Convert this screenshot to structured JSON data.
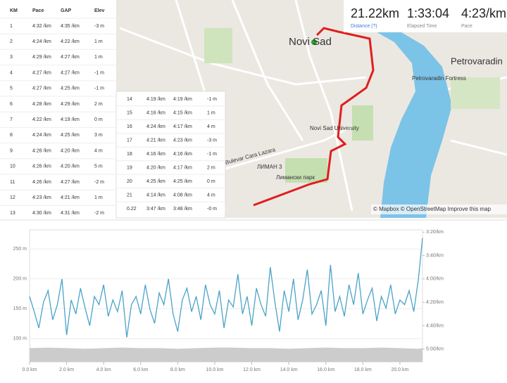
{
  "stats": [
    {
      "value": "21.22km",
      "label": "Distance (?)"
    },
    {
      "value": "1:33:04",
      "label": "Elapsed Time"
    },
    {
      "value": "4:23/km",
      "label": "Pace"
    }
  ],
  "splits": {
    "header": [
      "KM",
      "Pace",
      "GAP",
      "Elev"
    ],
    "rows": [
      [
        "1",
        "4:32 /km",
        "4:35 /km",
        "-3 m"
      ],
      [
        "2",
        "4:24 /km",
        "4:22 /km",
        "1 m"
      ],
      [
        "3",
        "4:29 /km",
        "4:27 /km",
        "1 m"
      ],
      [
        "4",
        "4:27 /km",
        "4:27 /km",
        "-1 m"
      ],
      [
        "5",
        "4:27 /km",
        "4:25 /km",
        "-1 m"
      ],
      [
        "6",
        "4:28 /km",
        "4:29 /km",
        "2 m"
      ],
      [
        "7",
        "4:22 /km",
        "4:19 /km",
        "0 m"
      ],
      [
        "8",
        "4:24 /km",
        "4:25 /km",
        "3 m"
      ],
      [
        "9",
        "4:26 /km",
        "4:20 /km",
        "4 m"
      ],
      [
        "10",
        "4:26 /km",
        "4:20 /km",
        "5 m"
      ],
      [
        "11",
        "4:26 /km",
        "4:27 /km",
        "-2 m"
      ],
      [
        "12",
        "4:23 /km",
        "4:21 /km",
        "1 m"
      ],
      [
        "13",
        "4:30 /km",
        "4:31 /km",
        "-2 m"
      ]
    ],
    "rows2": [
      [
        "14",
        "4:19 /km",
        "4:19 /km",
        "-1 m"
      ],
      [
        "15",
        "4:16 /km",
        "4:15 /km",
        "1 m"
      ],
      [
        "16",
        "4:24 /km",
        "4:17 /km",
        "4 m"
      ],
      [
        "17",
        "4:21 /km",
        "4:23 /km",
        "-3 m"
      ],
      [
        "18",
        "4:16 /km",
        "4:16 /km",
        "-1 m"
      ],
      [
        "19",
        "4:20 /km",
        "4:17 /km",
        "2 m"
      ],
      [
        "20",
        "4:25 /km",
        "4:25 /km",
        "0 m"
      ],
      [
        "21",
        "4:14 /km",
        "4:08 /km",
        "4 m"
      ],
      [
        "0.22",
        "3:47 /km",
        "3:48 /km",
        "-0 m"
      ]
    ]
  },
  "map": {
    "city": "Novi Sad",
    "labels": [
      "Petrovaradin",
      "Petrovaradin Fortress",
      "Novi Sad University",
      "Bulevar Cara Lazara",
      "ЛИМАН 3",
      "Лимански парк"
    ],
    "attribution": "© Mapbox © OpenStreetMap Improve this map"
  },
  "chart_data": {
    "type": "line",
    "xlim": [
      0,
      21.22
    ],
    "xticks": [
      {
        "value": 0,
        "label": "0.0 km"
      },
      {
        "value": 2,
        "label": "2.0 km"
      },
      {
        "value": 4,
        "label": "4.0 km"
      },
      {
        "value": 6,
        "label": "6.0 km"
      },
      {
        "value": 8,
        "label": "8.0 km"
      },
      {
        "value": 10,
        "label": "10.0 km"
      },
      {
        "value": 12,
        "label": "12.0 km"
      },
      {
        "value": 14,
        "label": "14.0 km"
      },
      {
        "value": 16,
        "label": "16.0 km"
      },
      {
        "value": 18,
        "label": "18.0 km"
      },
      {
        "value": 20,
        "label": "20.0 km"
      }
    ],
    "ylim": [
      61,
      282
    ],
    "yticks": [
      {
        "value": 100,
        "label": "100 m"
      },
      {
        "value": 150,
        "label": "150 m"
      },
      {
        "value": 200,
        "label": "200 m"
      },
      {
        "value": 250,
        "label": "250 m"
      }
    ],
    "y2lim": [
      311,
      198
    ],
    "y2ticks": [
      {
        "value": 200,
        "label": "3:20/km"
      },
      {
        "value": 220,
        "label": "3:40/km"
      },
      {
        "value": 240,
        "label": "4:00/km"
      },
      {
        "value": 260,
        "label": "4:20/km"
      },
      {
        "value": 280,
        "label": "4:40/km"
      },
      {
        "value": 300,
        "label": "5:00/km"
      }
    ],
    "series": [
      {
        "color": "#cccccc",
        "x": [
          0,
          1,
          2,
          3,
          4,
          5,
          6,
          7,
          8,
          9,
          10,
          11,
          12,
          13,
          14,
          15,
          16,
          17,
          18,
          19,
          20,
          21,
          21.22
        ],
        "values": [
          84,
          85,
          84,
          83,
          84,
          85,
          84,
          84,
          83,
          84,
          85,
          85,
          84,
          84,
          83,
          84,
          85,
          84,
          84,
          85,
          84,
          83,
          84
        ]
      },
      {
        "color": "#4aa3c8",
        "axis": "y2",
        "x": [
          0,
          0.25,
          0.5,
          0.75,
          1,
          1.25,
          1.5,
          1.75,
          2,
          2.25,
          2.5,
          2.75,
          3,
          3.25,
          3.5,
          3.75,
          4,
          4.25,
          4.5,
          4.75,
          5,
          5.25,
          5.5,
          5.75,
          6,
          6.25,
          6.5,
          6.75,
          7,
          7.25,
          7.5,
          7.75,
          8,
          8.25,
          8.5,
          8.75,
          9,
          9.25,
          9.5,
          9.75,
          10,
          10.25,
          10.5,
          10.75,
          11,
          11.25,
          11.5,
          11.75,
          12,
          12.25,
          12.5,
          12.75,
          13,
          13.25,
          13.5,
          13.75,
          14,
          14.25,
          14.5,
          14.75,
          15,
          15.25,
          15.5,
          15.75,
          16,
          16.25,
          16.5,
          16.75,
          17,
          17.25,
          17.5,
          17.75,
          18,
          18.25,
          18.5,
          18.75,
          19,
          19.25,
          19.5,
          19.75,
          20,
          20.25,
          20.5,
          20.75,
          21,
          21.22
        ],
        "values": [
          255,
          268,
          282,
          260,
          250,
          275,
          262,
          240,
          288,
          258,
          270,
          248,
          265,
          280,
          255,
          262,
          245,
          272,
          258,
          268,
          250,
          290,
          262,
          255,
          270,
          245,
          266,
          278,
          252,
          262,
          240,
          270,
          285,
          258,
          248,
          268,
          255,
          275,
          245,
          262,
          270,
          250,
          282,
          258,
          264,
          236,
          270,
          255,
          280,
          248,
          262,
          272,
          230,
          260,
          285,
          250,
          268,
          240,
          275,
          258,
          232,
          270,
          262,
          250,
          280,
          228,
          268,
          255,
          272,
          245,
          262,
          235,
          270,
          258,
          248,
          276,
          255,
          265,
          245,
          270,
          258,
          262,
          250,
          268,
          240,
          205
        ]
      }
    ]
  }
}
